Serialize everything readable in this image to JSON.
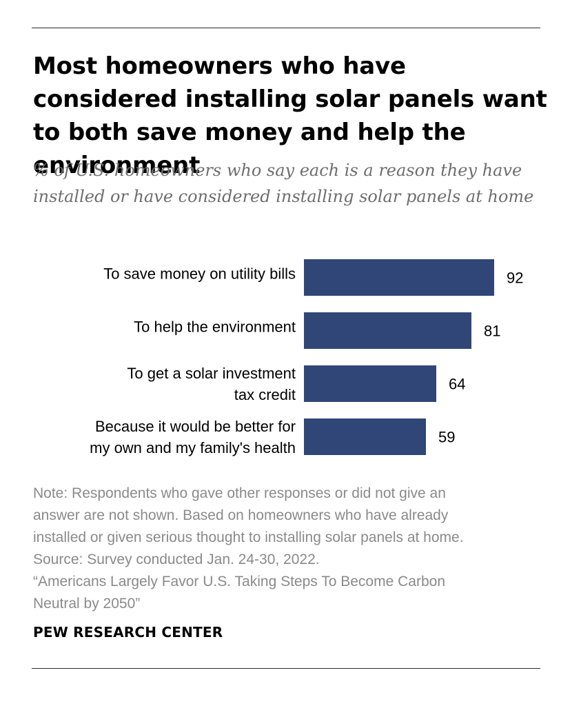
{
  "title": "Most homeowners who have considered installing solar panels want to both save money and help the environment",
  "subtitle": "% of U.S. homeowners who say each is a reason they have installed or have considered installing solar panels at home",
  "colors": {
    "bar": "#2f4677",
    "text": "#000000",
    "note": "#8a8a8a",
    "subtitle": "#6e6e6e"
  },
  "chart_data": {
    "type": "bar",
    "orientation": "horizontal",
    "categories": [
      [
        "To save money on utility bills"
      ],
      [
        "To help the environment"
      ],
      [
        "To get a solar investment",
        "tax credit"
      ],
      [
        "Because it would be better for",
        "my own and my family's health"
      ]
    ],
    "values": [
      92,
      81,
      64,
      59
    ],
    "title": "Most homeowners who have considered installing solar panels want to both save money and help the environment",
    "xlabel": "",
    "ylabel": "",
    "xlim": [
      0,
      100
    ],
    "grid": false,
    "data_labels": true
  },
  "notes": {
    "lines": [
      "Note: Respondents who gave other responses or did not give an",
      "answer are not shown. Based on homeowners who have already",
      "installed or given serious thought to installing solar panels at home.",
      "Source: Survey conducted Jan. 24-30, 2022.",
      "“Americans Largely Favor U.S. Taking Steps To Become Carbon",
      "Neutral by 2050”"
    ]
  },
  "source_org": "PEW RESEARCH CENTER"
}
